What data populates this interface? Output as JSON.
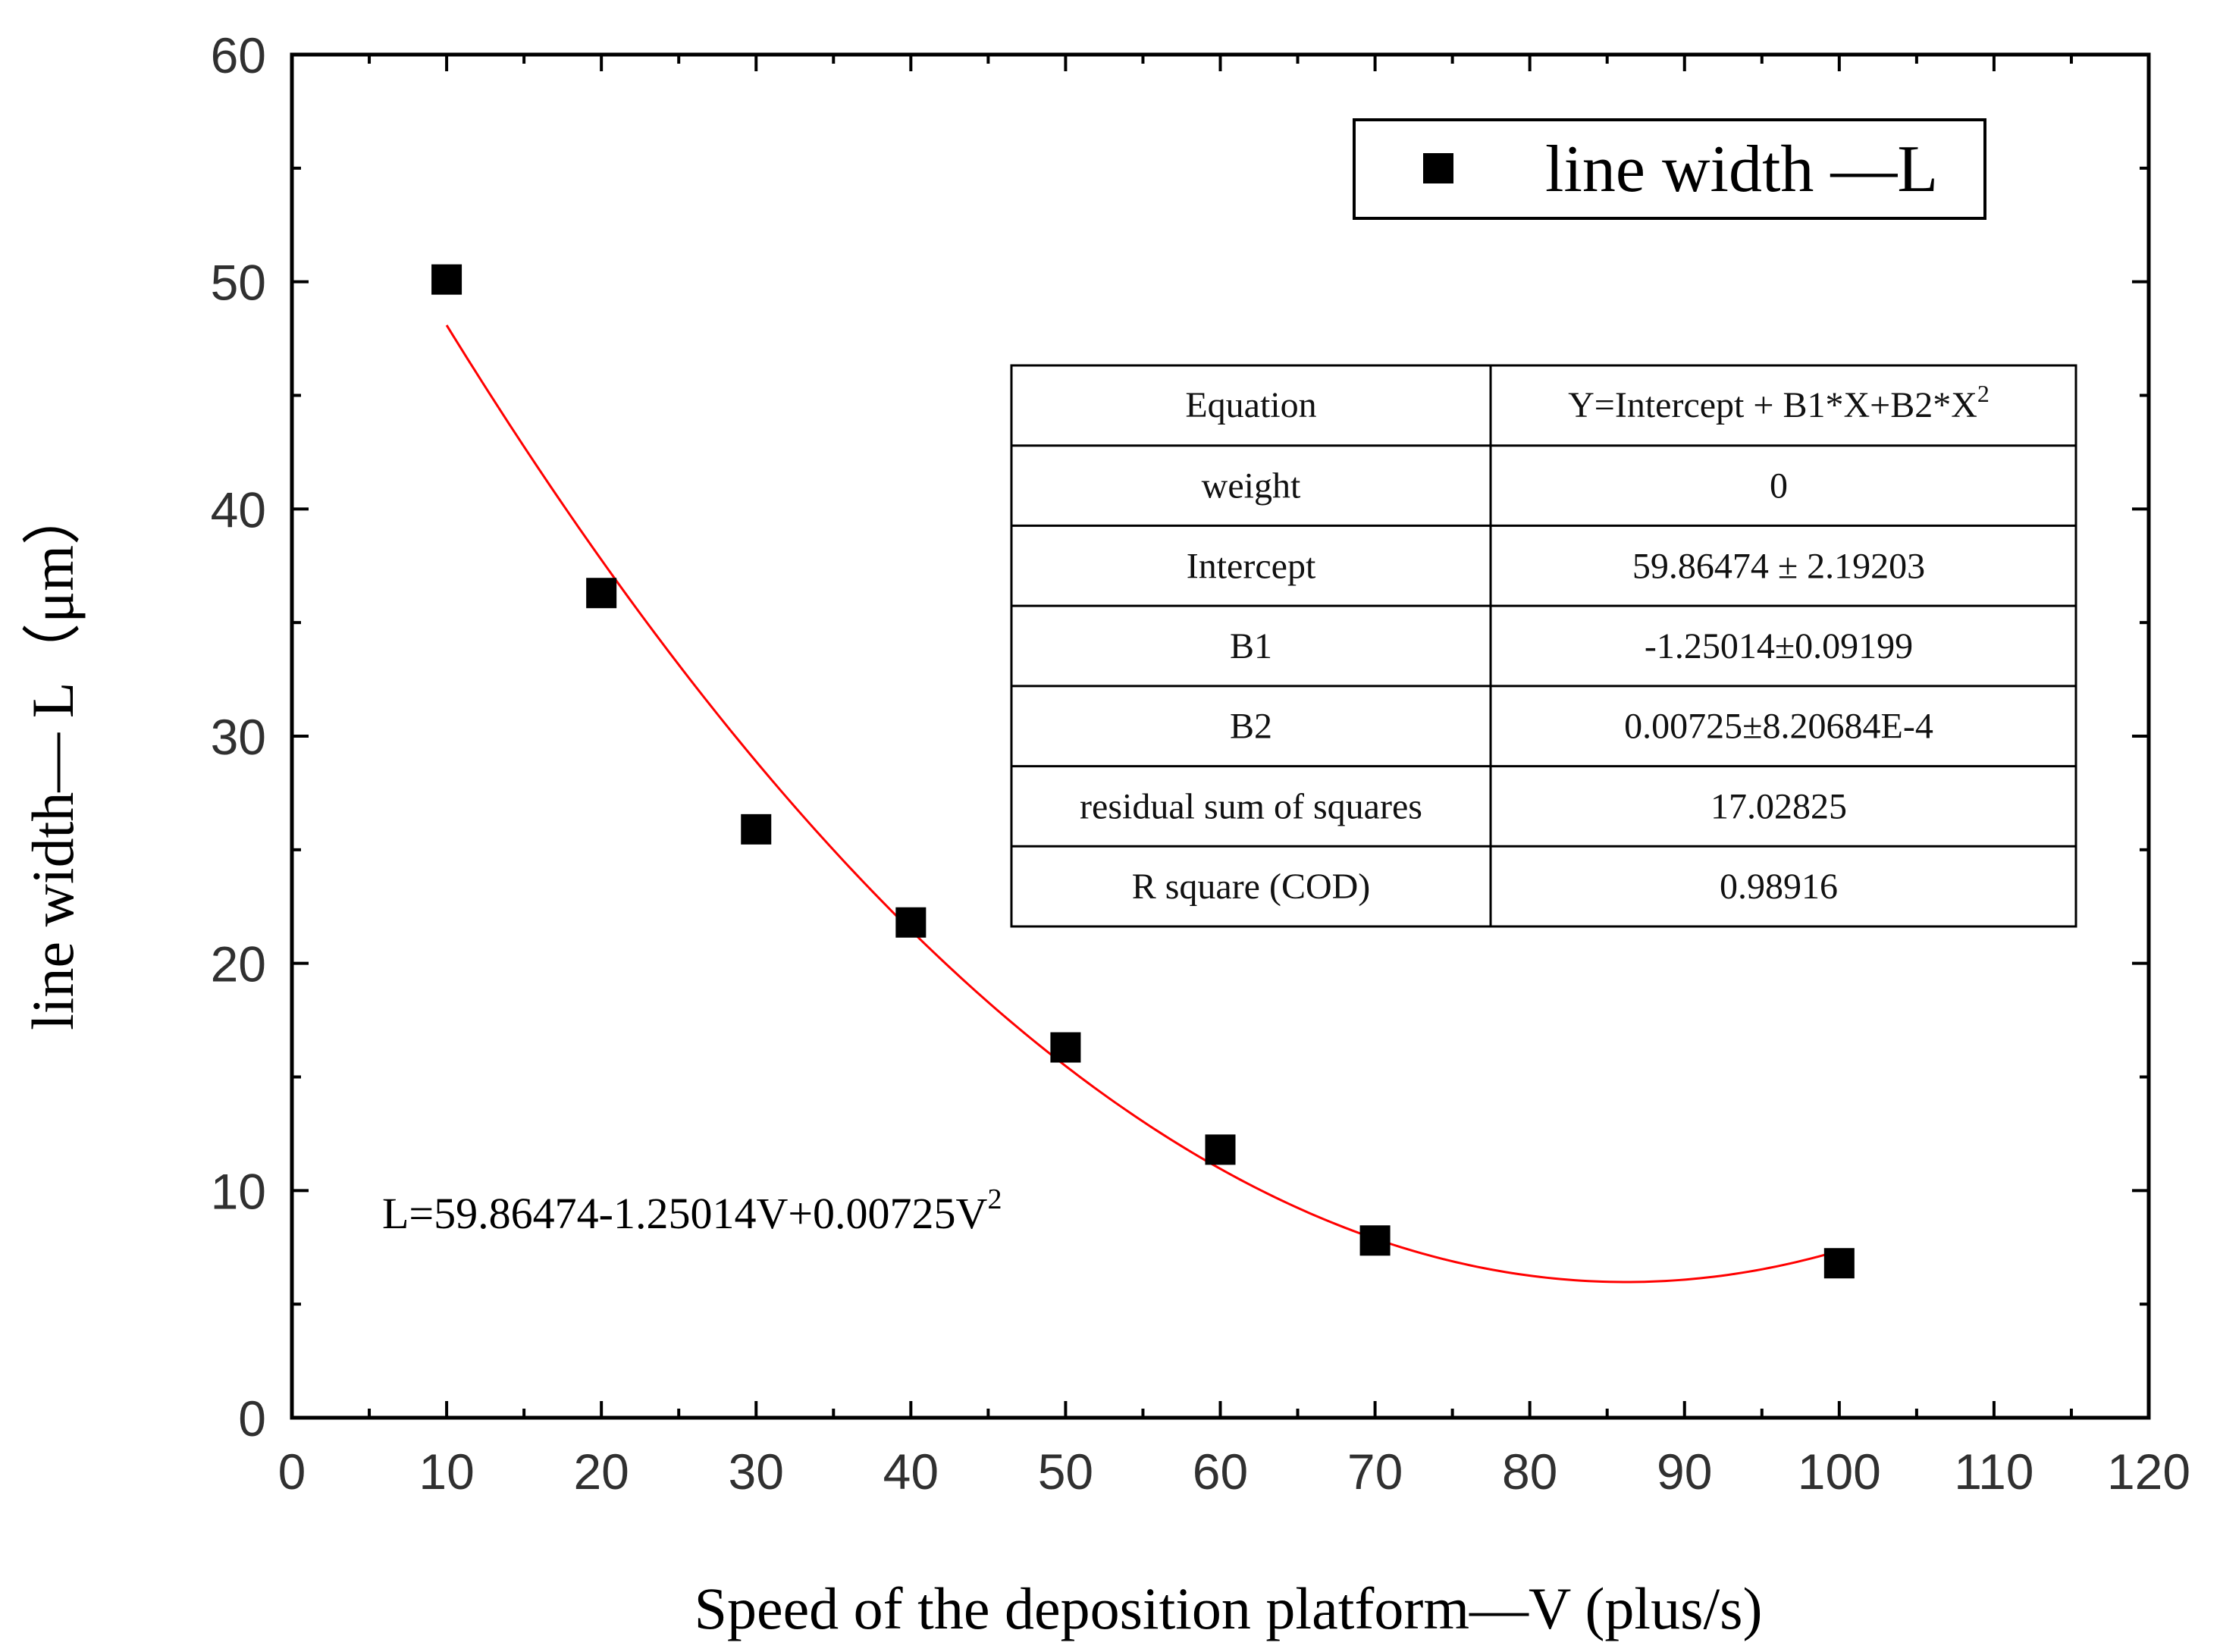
{
  "chart_data": {
    "type": "scatter",
    "xlabel": "Speed of the deposition platform—V (plus/s)",
    "ylabel": "line width— L（μm）",
    "xlim": [
      0,
      120
    ],
    "ylim": [
      0,
      60
    ],
    "x_ticks": [
      0,
      10,
      20,
      30,
      40,
      50,
      60,
      70,
      80,
      90,
      100,
      110,
      120
    ],
    "x_tick_labels": [
      "0",
      "10",
      "20",
      "30",
      "40",
      "50",
      "60",
      "70",
      "80",
      "90",
      "100",
      "110",
      "120"
    ],
    "y_ticks": [
      0,
      10,
      20,
      30,
      40,
      50,
      60
    ],
    "y_tick_labels": [
      "0",
      "10",
      "20",
      "30",
      "40",
      "50",
      "60"
    ],
    "x_minor_step": 5,
    "y_minor_step": 5,
    "legend": {
      "label": "line width —L",
      "placement": "top-right"
    },
    "series": [
      {
        "name": "line width —L",
        "marker": "square",
        "color": "#000000",
        "x": [
          10,
          20,
          30,
          40,
          50,
          60,
          70,
          100
        ],
        "y": [
          50.1,
          36.3,
          25.9,
          21.8,
          16.3,
          11.8,
          7.8,
          6.8
        ]
      }
    ],
    "fit": {
      "type": "quadratic",
      "color": "#ff0000",
      "intercept": 59.86474,
      "b1": -1.25014,
      "b2": 0.00725,
      "x_range": [
        10,
        100
      ]
    },
    "fit_equation": {
      "main": "L=59.86474-1.25014V+0.00725V",
      "sup": "2"
    },
    "stats_table": {
      "equation_label": "Equation",
      "equation_value": "Y=Intercept + B1*X+B2*X",
      "equation_sup": "2",
      "rows": [
        {
          "label": "weight",
          "value": "0"
        },
        {
          "label": "Intercept",
          "value": "59.86474 ± 2.19203"
        },
        {
          "label": "B1",
          "value": "-1.25014±0.09199"
        },
        {
          "label": "B2",
          "value": "0.00725±8.20684E-4"
        },
        {
          "label": "residual sum of squares",
          "value": "17.02825"
        },
        {
          "label": "R square (COD)",
          "value": "0.98916"
        }
      ]
    }
  }
}
